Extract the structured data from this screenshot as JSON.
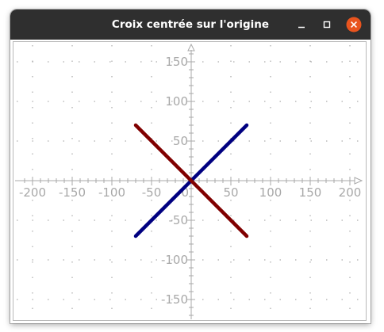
{
  "window": {
    "title": "Croix centrée sur l'origine",
    "minimize_icon": "minimize-icon",
    "maximize_icon": "maximize-icon",
    "close_icon": "close-icon",
    "close_color": "#e9541e",
    "titlebar_color": "#2f2f2f"
  },
  "chart_data": {
    "type": "line",
    "title": "",
    "xlabel": "",
    "ylabel": "",
    "xlim": [
      -220,
      220
    ],
    "ylim": [
      -170,
      170
    ],
    "grid": true,
    "xticks": [
      -200,
      -150,
      -100,
      -50,
      50,
      100,
      150,
      200
    ],
    "yticks": [
      150,
      100,
      50,
      -50,
      -100,
      -150
    ],
    "x_tick_labels": [
      "-200",
      "-150",
      "-100",
      "-50",
      "50",
      "100",
      "150",
      "200"
    ],
    "y_tick_labels": [
      "150",
      "100",
      "50",
      "-50",
      "-100",
      "-150"
    ],
    "origin_label": "0",
    "series": [
      {
        "x": [
          -70,
          70
        ],
        "y": [
          -70,
          70
        ],
        "color": "#000080"
      },
      {
        "x": [
          -70,
          70
        ],
        "y": [
          70,
          -70
        ],
        "color": "#800000"
      }
    ]
  }
}
